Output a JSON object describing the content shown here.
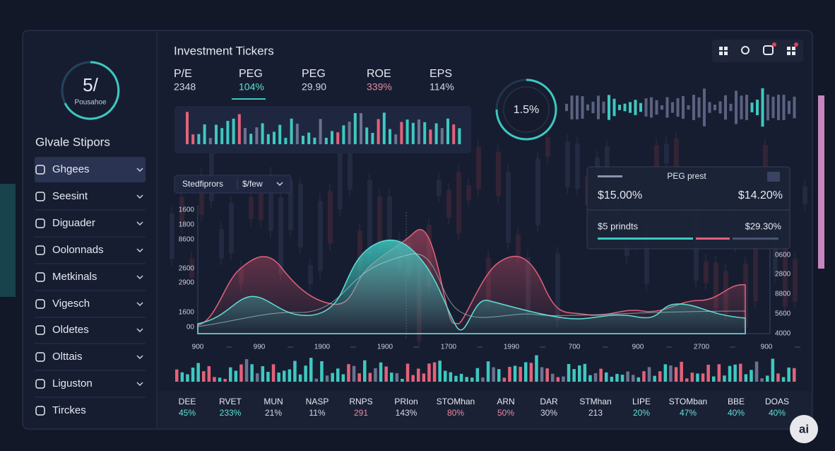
{
  "gauge": {
    "value": "5/",
    "label": "Pousahoe"
  },
  "sidebar": {
    "title": "Glvale Stipors",
    "items": [
      "Ghgees",
      "Seesint",
      "Diguader",
      "Oolonnads",
      "Metkinals",
      "Vigesch",
      "Oldetes",
      "Olttais",
      "Liguston",
      "Tirckes"
    ]
  },
  "header": {
    "title": "Investment Tickers"
  },
  "metrics": [
    {
      "label": "P/E",
      "value": "2348"
    },
    {
      "label": "PEG",
      "value": "104%"
    },
    {
      "label": "PEG",
      "value": "29.90"
    },
    {
      "label": "ROE",
      "value": "339%"
    },
    {
      "label": "EPS",
      "value": "114%"
    }
  ],
  "gauge2": {
    "value": "1.5%"
  },
  "dropdown": {
    "label": "Stedfiprors",
    "value": "$/few"
  },
  "chart": {
    "y_labels": [
      "1600",
      "1800",
      "8600",
      "2600",
      "2900",
      "1600",
      "00"
    ],
    "x_labels": [
      "900",
      "990",
      "1900",
      "1900",
      "1700",
      "1990",
      "700",
      "900",
      "2700",
      "900"
    ],
    "y2_labels": [
      "0600",
      "2800",
      "8800",
      "5600",
      "4000"
    ]
  },
  "popup": {
    "title": "PEG prest",
    "left": "$15.00%",
    "right": "$14.20%",
    "row_label": "$5 prindts",
    "row_value": "$29.30%"
  },
  "tickers": [
    {
      "name": "DEE",
      "value": "45%"
    },
    {
      "name": "RVET",
      "value": "233%"
    },
    {
      "name": "MUN",
      "value": "21%"
    },
    {
      "name": "NASP",
      "value": "11%"
    },
    {
      "name": "RNPS",
      "value": "291"
    },
    {
      "name": "PRIon",
      "value": "143%"
    },
    {
      "name": "STOMhan",
      "value": "80%"
    },
    {
      "name": "ARN",
      "value": "50%"
    },
    {
      "name": "DAR",
      "value": "30%"
    },
    {
      "name": "STMhan",
      "value": "213"
    },
    {
      "name": "LIPE",
      "value": "20%"
    },
    {
      "name": "STOMban",
      "value": "47%"
    },
    {
      "name": "BBE",
      "value": "40%"
    },
    {
      "name": "DOAS",
      "value": "40%"
    }
  ],
  "badge": "ai"
}
